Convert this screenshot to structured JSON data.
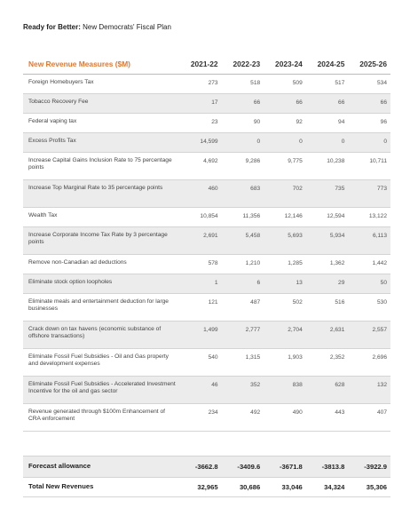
{
  "title": {
    "bold": "Ready for Better:",
    "rest": " New Democrats' Fiscal Plan"
  },
  "table": {
    "header_label": "New Revenue Measures ($M)",
    "years": [
      "2021-22",
      "2022-23",
      "2023-24",
      "2024-25",
      "2025-26"
    ],
    "rows": [
      {
        "label": "Foreign Homebuyers Tax",
        "values": [
          "273",
          "518",
          "509",
          "517",
          "534"
        ]
      },
      {
        "label": "Tobacco Recovery Fee",
        "values": [
          "17",
          "66",
          "66",
          "66",
          "66"
        ]
      },
      {
        "label": "Federal vaping tax",
        "values": [
          "23",
          "90",
          "92",
          "94",
          "96"
        ]
      },
      {
        "label": "Excess Profits Tax",
        "values": [
          "14,599",
          "0",
          "0",
          "0",
          "0"
        ]
      },
      {
        "label": "Increase Capital Gains Inclusion Rate to 75 percentage points",
        "values": [
          "4,692",
          "9,286",
          "9,775",
          "10,238",
          "10,711"
        ]
      },
      {
        "label": "Increase Top Marginal Rate to 35 percentage points",
        "values": [
          "460",
          "683",
          "702",
          "735",
          "773"
        ]
      },
      {
        "label": "Wealth Tax",
        "values": [
          "10,854",
          "11,356",
          "12,146",
          "12,594",
          "13,122"
        ]
      },
      {
        "label": "Increase Corporate Income Tax Rate by 3 percentage points",
        "values": [
          "2,691",
          "5,458",
          "5,693",
          "5,934",
          "6,113"
        ]
      },
      {
        "label": "Remove non-Canadian ad deductions",
        "values": [
          "578",
          "1,210",
          "1,285",
          "1,362",
          "1,442"
        ]
      },
      {
        "label": "Eliminate stock option loopholes",
        "values": [
          "1",
          "6",
          "13",
          "29",
          "50"
        ]
      },
      {
        "label": "Eliminate meals and entertainment deduction for large businesses",
        "values": [
          "121",
          "487",
          "502",
          "516",
          "530"
        ]
      },
      {
        "label": "Crack down on tax havens (economic substance of offshore transactions)",
        "values": [
          "1,499",
          "2,777",
          "2,704",
          "2,631",
          "2,557"
        ]
      },
      {
        "label": "Eliminate Fossil Fuel Subsidies - Oil and Gas property and development expenses",
        "values": [
          "540",
          "1,315",
          "1,903",
          "2,352",
          "2,696"
        ]
      },
      {
        "label": "Eliminate Fossil Fuel Subsidies - Accelerated Investment Incentive for the oil and gas sector",
        "values": [
          "46",
          "352",
          "838",
          "628",
          "132"
        ]
      },
      {
        "label": "Revenue generated through $100m Enhancement of CRA enforcement",
        "values": [
          "234",
          "492",
          "490",
          "443",
          "407"
        ]
      }
    ],
    "forecast": {
      "label": "Forecast allowance",
      "values": [
        "-3662.8",
        "-3409.6",
        "-3671.8",
        "-3813.8",
        "-3922.9"
      ]
    },
    "total": {
      "label": "Total New Revenues",
      "values": [
        "32,965",
        "30,686",
        "33,046",
        "34,324",
        "35,306"
      ]
    }
  },
  "colors": {
    "accent": "#e8762d",
    "row_shade": "#ececec"
  }
}
